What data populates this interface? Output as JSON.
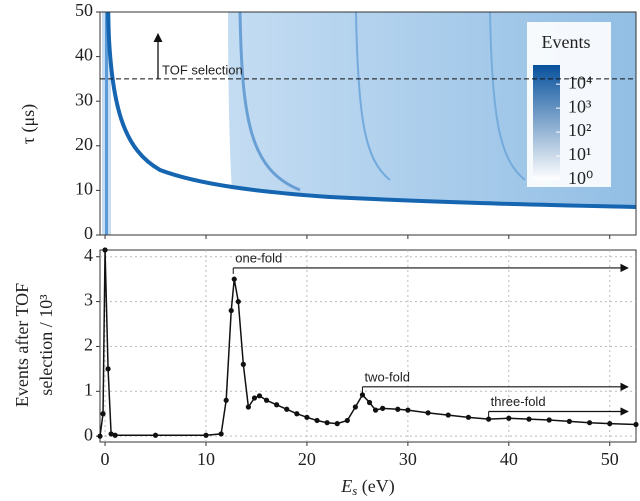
{
  "chart_data": {
    "type": "line",
    "xlabel": {
      "main": "E",
      "sub": "s",
      "unit": " (eV)"
    },
    "xlim": [
      -0.5,
      52.6
    ],
    "xticks": [
      0,
      10,
      20,
      30,
      40,
      50
    ],
    "top_panel": {
      "ylabel": "τ (μs)",
      "ylim": [
        0,
        50
      ],
      "yticks": [
        0,
        10,
        20,
        30,
        40,
        50
      ],
      "tof_selection": {
        "value": 35,
        "label": "TOF selection"
      },
      "colorbar": {
        "title": "Events",
        "lim": [
          0,
          4.8
        ],
        "colors": [
          "#ffffff",
          "#08519c"
        ],
        "ticks": [
          {
            "value": 0,
            "label": "10⁰"
          },
          {
            "value": 1,
            "label": "10¹"
          },
          {
            "value": 2,
            "label": "10²"
          },
          {
            "value": 3,
            "label": "10³"
          },
          {
            "value": 4,
            "label": "10⁴"
          }
        ]
      }
    },
    "ylabel": [
      "Events after TOF",
      "selection / 10³"
    ],
    "ylim": [
      -0.13,
      4.15
    ],
    "yticks": [
      0,
      1,
      2,
      3,
      4
    ],
    "grid": true,
    "x": [
      -0.5,
      -0.2,
      0,
      0.3,
      0.6,
      1,
      5,
      10,
      11.5,
      12,
      12.5,
      12.8,
      13.2,
      13.7,
      14.2,
      14.8,
      15.3,
      16,
      17,
      18,
      19,
      20,
      21,
      22,
      23,
      24,
      24.8,
      25.5,
      26.2,
      26.8,
      27.5,
      29,
      30,
      32,
      34,
      36,
      38,
      40,
      42,
      44,
      46,
      48,
      50,
      52.6
    ],
    "series": [
      {
        "color": "#111111",
        "values": [
          0,
          0.5,
          4.15,
          1.5,
          0.05,
          0.02,
          0.02,
          0.02,
          0.05,
          0.8,
          2.8,
          3.5,
          3.0,
          1.6,
          0.65,
          0.85,
          0.9,
          0.8,
          0.7,
          0.6,
          0.5,
          0.42,
          0.35,
          0.3,
          0.28,
          0.35,
          0.65,
          0.92,
          0.75,
          0.58,
          0.62,
          0.6,
          0.58,
          0.52,
          0.47,
          0.42,
          0.38,
          0.4,
          0.38,
          0.36,
          0.33,
          0.3,
          0.28,
          0.26
        ]
      }
    ],
    "annotations": [
      {
        "text": "one-fold",
        "x": 12.7,
        "y": 3.75
      },
      {
        "text": "two-fold",
        "x": 25.5,
        "y": 1.1
      },
      {
        "text": "three-fold",
        "x": 38,
        "y": 0.55
      }
    ]
  }
}
